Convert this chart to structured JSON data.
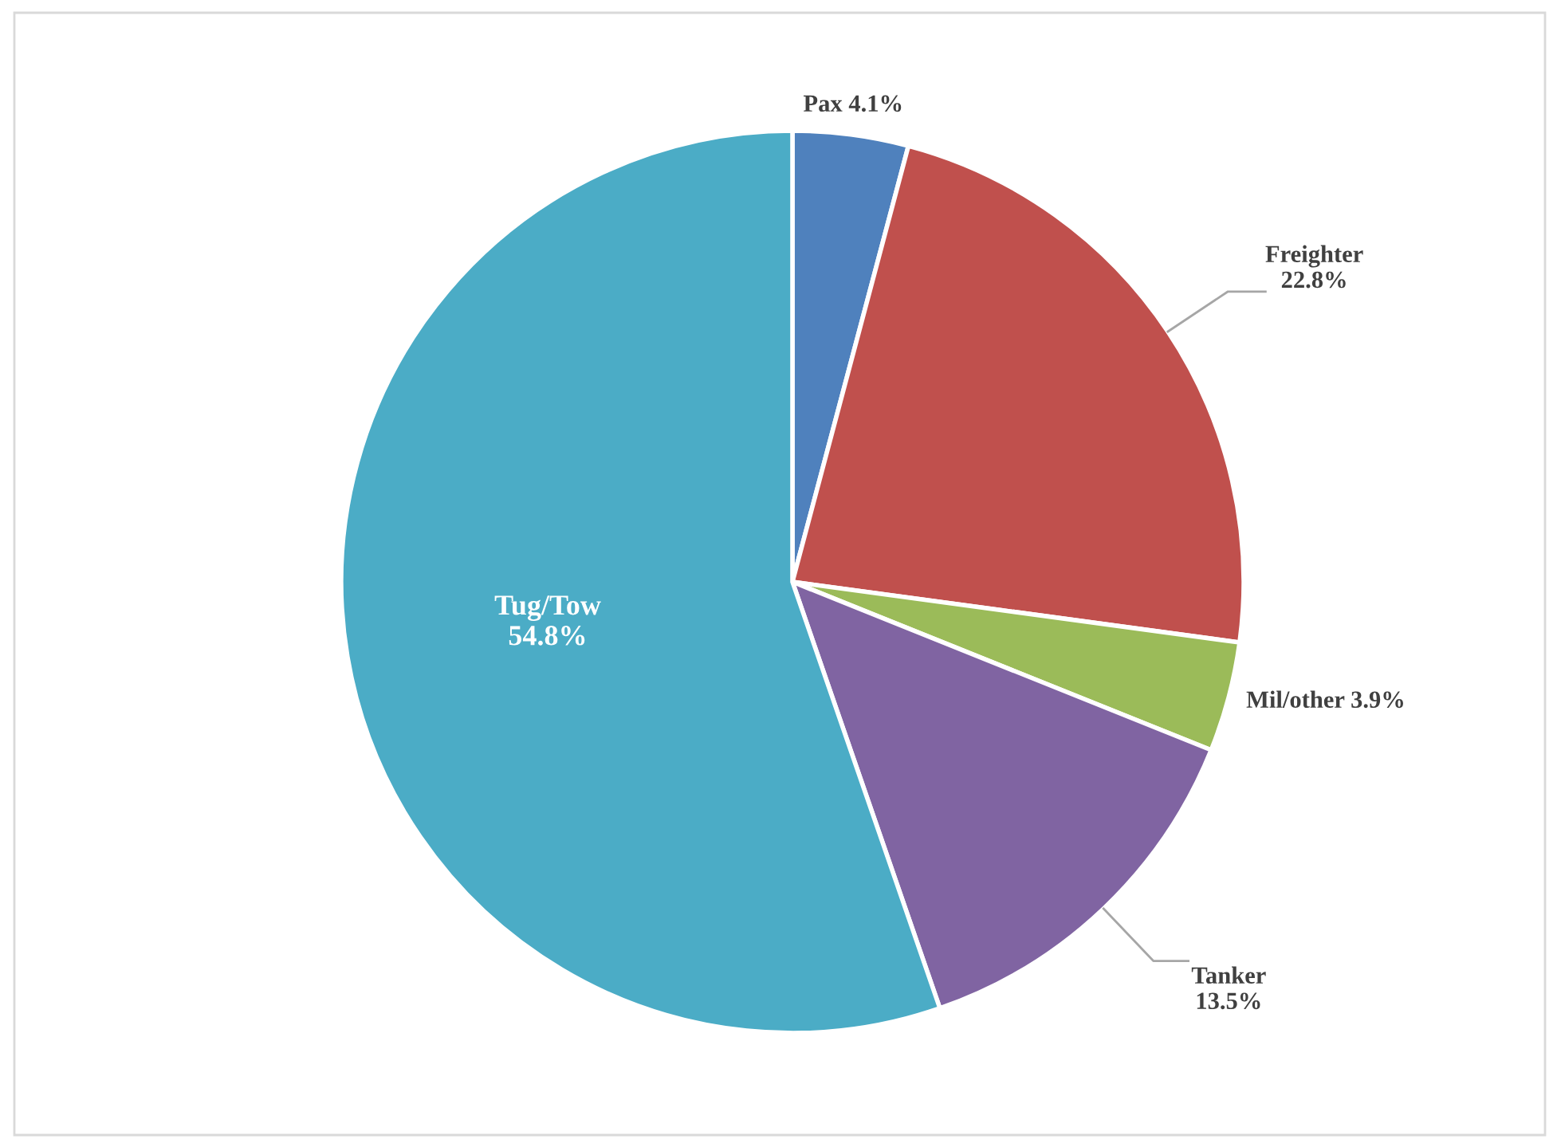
{
  "chart_data": {
    "type": "pie",
    "categories": [
      "Pax",
      "Freighter",
      "Mil/other",
      "Tanker",
      "Tug/Tow"
    ],
    "values": [
      4.1,
      22.8,
      3.9,
      13.5,
      54.8
    ],
    "colors": [
      "#4f81bd",
      "#c0504d",
      "#9bbb59",
      "#8064a2",
      "#4bacc6"
    ],
    "value_labels": [
      "4.1%",
      "22.8%",
      "3.9%",
      "13.5%",
      "54.8%"
    ],
    "legend": false
  }
}
